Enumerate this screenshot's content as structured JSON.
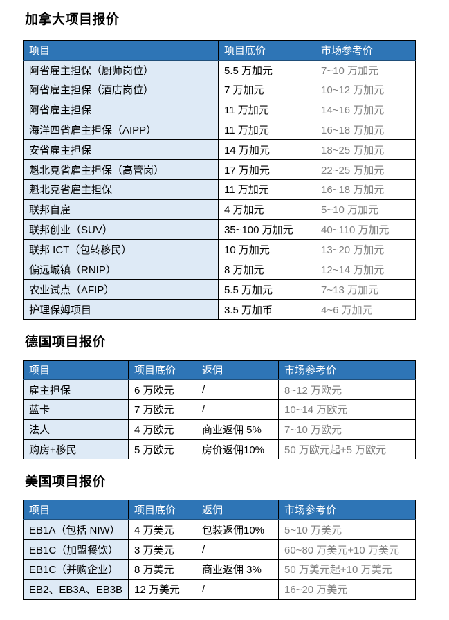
{
  "colors": {
    "header_bg": "#2E75B6",
    "header_underline": "#1F4E79",
    "first_column_bg": "#DEEAF6",
    "market_text": "#808080",
    "border": "#000000",
    "text": "#000000",
    "page_bg": "#ffffff"
  },
  "sections": [
    {
      "title": "加拿大项目报价",
      "columns": [
        "项目",
        "项目底价",
        "市场参考价"
      ],
      "rows": [
        [
          "阿省雇主担保（厨师岗位）",
          "5.5 万加元",
          "7~10 万加元"
        ],
        [
          "阿省雇主担保（酒店岗位）",
          "7 万加元",
          "10~12 万加元"
        ],
        [
          "阿省雇主担保",
          "11 万加元",
          "14~16 万加元"
        ],
        [
          "海洋四省雇主担保（AIPP）",
          "11 万加元",
          "16~18 万加元"
        ],
        [
          "安省雇主担保",
          "14 万加元",
          "18~25 万加元"
        ],
        [
          "魁北克省雇主担保（高管岗）",
          "17 万加元",
          "22~25 万加元"
        ],
        [
          "魁北克省雇主担保",
          "11 万加元",
          "16~18 万加元"
        ],
        [
          "联邦自雇",
          "4 万加元",
          "5~10 万加元"
        ],
        [
          "联邦创业（SUV）",
          "35~100 万加元",
          "40~110 万加元"
        ],
        [
          "联邦 ICT（包转移民）",
          "10 万加元",
          "13~20 万加元"
        ],
        [
          "偏远城镇（RNIP）",
          "8 万加元",
          "12~14 万加元"
        ],
        [
          "农业试点（AFIP）",
          "5.5 万加元",
          "7~13 万加元"
        ],
        [
          "护理保姆项目",
          "3.5 万加币",
          "4~6 万加元"
        ]
      ]
    },
    {
      "title": "德国项目报价",
      "columns": [
        "项目",
        "项目底价",
        "返佣",
        "市场参考价"
      ],
      "rows": [
        [
          "雇主担保",
          "6 万欧元",
          "/",
          "8~12 万欧元"
        ],
        [
          "蓝卡",
          "7 万欧元",
          "/",
          "10~14 万欧元"
        ],
        [
          "法人",
          "4 万欧元",
          "商业返佣 5%",
          "7~10 万欧元"
        ],
        [
          "购房+移民",
          "5 万欧元",
          "房价返佣10%",
          "50 万欧元起+5 万欧元"
        ]
      ]
    },
    {
      "title": "美国项目报价",
      "columns": [
        "项目",
        "项目底价",
        "返佣",
        "市场参考价"
      ],
      "rows": [
        [
          "EB1A（包括 NIW）",
          "4 万美元",
          "包装返佣10%",
          "5~10 万美元"
        ],
        [
          "EB1C（加盟餐饮）",
          "3 万美元",
          "/",
          "60~80 万美元+10 万美元"
        ],
        [
          "EB1C（并购企业）",
          "8 万美元",
          "商业返佣 3%",
          "50 万美元起+10 万美元"
        ],
        [
          "EB2、EB3A、EB3B",
          "12 万美元",
          "/",
          "16~20 万美元"
        ]
      ]
    }
  ]
}
